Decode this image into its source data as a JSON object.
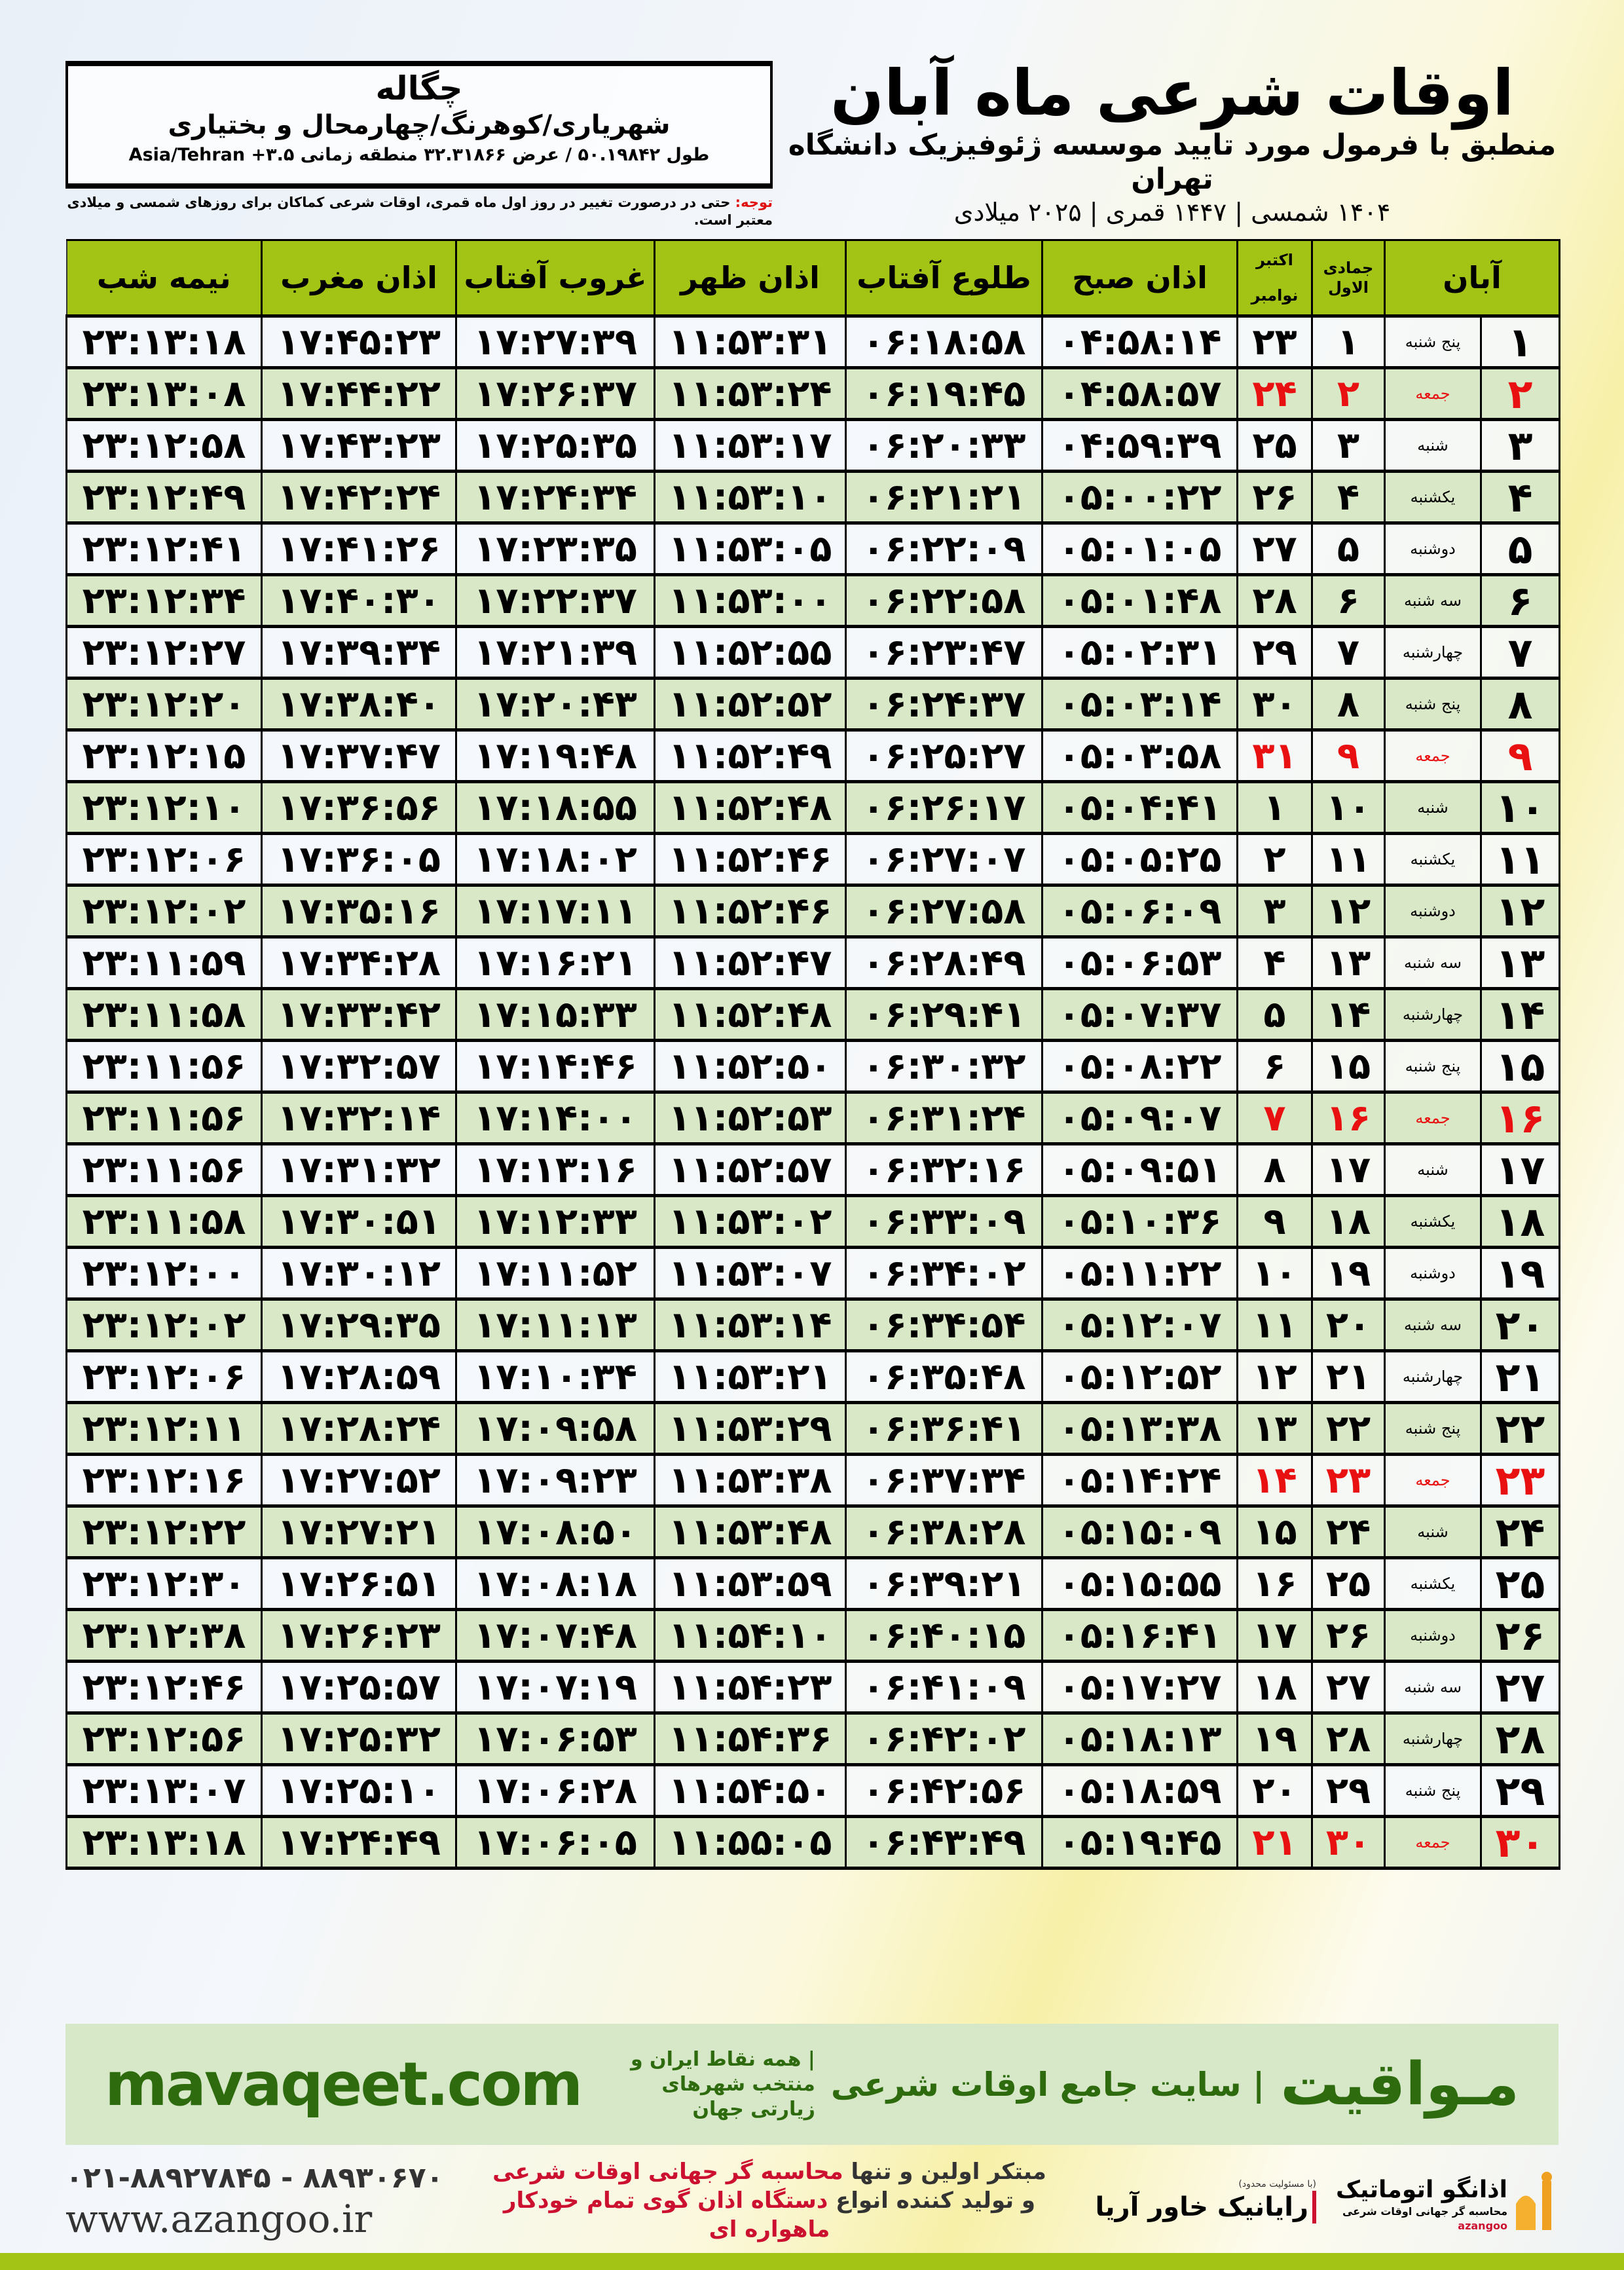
{
  "location": {
    "city": "چگاله",
    "region": "شهریاری/کوهرنگ/چهارمحال و بختیاری",
    "coords": "طول ۵۰.۱۹۸۴۲ / عرض ۳۲.۳۱۸۶۶ منطقه زمانی ۳.۵+ Asia/Tehran"
  },
  "header": {
    "title": "اوقات شرعی ماه آبان",
    "subtitle": "منطبق با فرمول مورد تایید موسسه ژئوفیزیک دانشگاه تهران",
    "dates": "۱۴۰۴ شمسی | ۱۴۴۷ قمری | ۲۰۲۵ میلادی"
  },
  "note": {
    "label": "توجه:",
    "text": " حتی در درصورت تغییر در روز اول ماه قمری، اوقات شرعی کماکان برای روزهای شمسی و میلادی معتبر است."
  },
  "table": {
    "columns": {
      "month": "آبان",
      "hijri": "جمادی الاول",
      "greg_1": "اکتبر",
      "greg_2": "نوامبر",
      "fajr": "اذان صبح",
      "sunrise": "طلوع آفتاب",
      "dhuhr": "اذان ظهر",
      "sunset": "غروب آفتاب",
      "maghrib": "اذان مغرب",
      "midnight": "نیمه شب"
    },
    "holiday_color": "#e81010",
    "header_color": "#a3c415",
    "alt_row_color": "#d9e8c7",
    "rows": [
      {
        "day": "۱",
        "weekday": "پنج شنبه",
        "hijri": "۱",
        "greg": "۲۳",
        "fajr": "۰۴:۵۸:۱۴",
        "sunrise": "۰۶:۱۸:۵۸",
        "dhuhr": "۱۱:۵۳:۳۱",
        "sunset": "۱۷:۲۷:۳۹",
        "maghrib": "۱۷:۴۵:۲۳",
        "midnight": "۲۳:۱۳:۱۸",
        "friday": false
      },
      {
        "day": "۲",
        "weekday": "جمعه",
        "hijri": "۲",
        "greg": "۲۴",
        "fajr": "۰۴:۵۸:۵۷",
        "sunrise": "۰۶:۱۹:۴۵",
        "dhuhr": "۱۱:۵۳:۲۴",
        "sunset": "۱۷:۲۶:۳۷",
        "maghrib": "۱۷:۴۴:۲۲",
        "midnight": "۲۳:۱۳:۰۸",
        "friday": true
      },
      {
        "day": "۳",
        "weekday": "شنبه",
        "hijri": "۳",
        "greg": "۲۵",
        "fajr": "۰۴:۵۹:۳۹",
        "sunrise": "۰۶:۲۰:۳۳",
        "dhuhr": "۱۱:۵۳:۱۷",
        "sunset": "۱۷:۲۵:۳۵",
        "maghrib": "۱۷:۴۳:۲۳",
        "midnight": "۲۳:۱۲:۵۸",
        "friday": false
      },
      {
        "day": "۴",
        "weekday": "یکشنبه",
        "hijri": "۴",
        "greg": "۲۶",
        "fajr": "۰۵:۰۰:۲۲",
        "sunrise": "۰۶:۲۱:۲۱",
        "dhuhr": "۱۱:۵۳:۱۰",
        "sunset": "۱۷:۲۴:۳۴",
        "maghrib": "۱۷:۴۲:۲۴",
        "midnight": "۲۳:۱۲:۴۹",
        "friday": false
      },
      {
        "day": "۵",
        "weekday": "دوشنبه",
        "hijri": "۵",
        "greg": "۲۷",
        "fajr": "۰۵:۰۱:۰۵",
        "sunrise": "۰۶:۲۲:۰۹",
        "dhuhr": "۱۱:۵۳:۰۵",
        "sunset": "۱۷:۲۳:۳۵",
        "maghrib": "۱۷:۴۱:۲۶",
        "midnight": "۲۳:۱۲:۴۱",
        "friday": false
      },
      {
        "day": "۶",
        "weekday": "سه شنبه",
        "hijri": "۶",
        "greg": "۲۸",
        "fajr": "۰۵:۰۱:۴۸",
        "sunrise": "۰۶:۲۲:۵۸",
        "dhuhr": "۱۱:۵۳:۰۰",
        "sunset": "۱۷:۲۲:۳۷",
        "maghrib": "۱۷:۴۰:۳۰",
        "midnight": "۲۳:۱۲:۳۴",
        "friday": false
      },
      {
        "day": "۷",
        "weekday": "چهارشنبه",
        "hijri": "۷",
        "greg": "۲۹",
        "fajr": "۰۵:۰۲:۳۱",
        "sunrise": "۰۶:۲۳:۴۷",
        "dhuhr": "۱۱:۵۲:۵۵",
        "sunset": "۱۷:۲۱:۳۹",
        "maghrib": "۱۷:۳۹:۳۴",
        "midnight": "۲۳:۱۲:۲۷",
        "friday": false
      },
      {
        "day": "۸",
        "weekday": "پنج شنبه",
        "hijri": "۸",
        "greg": "۳۰",
        "fajr": "۰۵:۰۳:۱۴",
        "sunrise": "۰۶:۲۴:۳۷",
        "dhuhr": "۱۱:۵۲:۵۲",
        "sunset": "۱۷:۲۰:۴۳",
        "maghrib": "۱۷:۳۸:۴۰",
        "midnight": "۲۳:۱۲:۲۰",
        "friday": false
      },
      {
        "day": "۹",
        "weekday": "جمعه",
        "hijri": "۹",
        "greg": "۳۱",
        "fajr": "۰۵:۰۳:۵۸",
        "sunrise": "۰۶:۲۵:۲۷",
        "dhuhr": "۱۱:۵۲:۴۹",
        "sunset": "۱۷:۱۹:۴۸",
        "maghrib": "۱۷:۳۷:۴۷",
        "midnight": "۲۳:۱۲:۱۵",
        "friday": true
      },
      {
        "day": "۱۰",
        "weekday": "شنبه",
        "hijri": "۱۰",
        "greg": "۱",
        "fajr": "۰۵:۰۴:۴۱",
        "sunrise": "۰۶:۲۶:۱۷",
        "dhuhr": "۱۱:۵۲:۴۸",
        "sunset": "۱۷:۱۸:۵۵",
        "maghrib": "۱۷:۳۶:۵۶",
        "midnight": "۲۳:۱۲:۱۰",
        "friday": false
      },
      {
        "day": "۱۱",
        "weekday": "یکشنبه",
        "hijri": "۱۱",
        "greg": "۲",
        "fajr": "۰۵:۰۵:۲۵",
        "sunrise": "۰۶:۲۷:۰۷",
        "dhuhr": "۱۱:۵۲:۴۶",
        "sunset": "۱۷:۱۸:۰۲",
        "maghrib": "۱۷:۳۶:۰۵",
        "midnight": "۲۳:۱۲:۰۶",
        "friday": false
      },
      {
        "day": "۱۲",
        "weekday": "دوشنبه",
        "hijri": "۱۲",
        "greg": "۳",
        "fajr": "۰۵:۰۶:۰۹",
        "sunrise": "۰۶:۲۷:۵۸",
        "dhuhr": "۱۱:۵۲:۴۶",
        "sunset": "۱۷:۱۷:۱۱",
        "maghrib": "۱۷:۳۵:۱۶",
        "midnight": "۲۳:۱۲:۰۲",
        "friday": false
      },
      {
        "day": "۱۳",
        "weekday": "سه شنبه",
        "hijri": "۱۳",
        "greg": "۴",
        "fajr": "۰۵:۰۶:۵۳",
        "sunrise": "۰۶:۲۸:۴۹",
        "dhuhr": "۱۱:۵۲:۴۷",
        "sunset": "۱۷:۱۶:۲۱",
        "maghrib": "۱۷:۳۴:۲۸",
        "midnight": "۲۳:۱۱:۵۹",
        "friday": false
      },
      {
        "day": "۱۴",
        "weekday": "چهارشنبه",
        "hijri": "۱۴",
        "greg": "۵",
        "fajr": "۰۵:۰۷:۳۷",
        "sunrise": "۰۶:۲۹:۴۱",
        "dhuhr": "۱۱:۵۲:۴۸",
        "sunset": "۱۷:۱۵:۳۳",
        "maghrib": "۱۷:۳۳:۴۲",
        "midnight": "۲۳:۱۱:۵۸",
        "friday": false
      },
      {
        "day": "۱۵",
        "weekday": "پنج شنبه",
        "hijri": "۱۵",
        "greg": "۶",
        "fajr": "۰۵:۰۸:۲۲",
        "sunrise": "۰۶:۳۰:۳۲",
        "dhuhr": "۱۱:۵۲:۵۰",
        "sunset": "۱۷:۱۴:۴۶",
        "maghrib": "۱۷:۳۲:۵۷",
        "midnight": "۲۳:۱۱:۵۶",
        "friday": false
      },
      {
        "day": "۱۶",
        "weekday": "جمعه",
        "hijri": "۱۶",
        "greg": "۷",
        "fajr": "۰۵:۰۹:۰۷",
        "sunrise": "۰۶:۳۱:۲۴",
        "dhuhr": "۱۱:۵۲:۵۳",
        "sunset": "۱۷:۱۴:۰۰",
        "maghrib": "۱۷:۳۲:۱۴",
        "midnight": "۲۳:۱۱:۵۶",
        "friday": true
      },
      {
        "day": "۱۷",
        "weekday": "شنبه",
        "hijri": "۱۷",
        "greg": "۸",
        "fajr": "۰۵:۰۹:۵۱",
        "sunrise": "۰۶:۳۲:۱۶",
        "dhuhr": "۱۱:۵۲:۵۷",
        "sunset": "۱۷:۱۳:۱۶",
        "maghrib": "۱۷:۳۱:۳۲",
        "midnight": "۲۳:۱۱:۵۶",
        "friday": false
      },
      {
        "day": "۱۸",
        "weekday": "یکشنبه",
        "hijri": "۱۸",
        "greg": "۹",
        "fajr": "۰۵:۱۰:۳۶",
        "sunrise": "۰۶:۳۳:۰۹",
        "dhuhr": "۱۱:۵۳:۰۲",
        "sunset": "۱۷:۱۲:۳۳",
        "maghrib": "۱۷:۳۰:۵۱",
        "midnight": "۲۳:۱۱:۵۸",
        "friday": false
      },
      {
        "day": "۱۹",
        "weekday": "دوشنبه",
        "hijri": "۱۹",
        "greg": "۱۰",
        "fajr": "۰۵:۱۱:۲۲",
        "sunrise": "۰۶:۳۴:۰۲",
        "dhuhr": "۱۱:۵۳:۰۷",
        "sunset": "۱۷:۱۱:۵۲",
        "maghrib": "۱۷:۳۰:۱۲",
        "midnight": "۲۳:۱۲:۰۰",
        "friday": false
      },
      {
        "day": "۲۰",
        "weekday": "سه شنبه",
        "hijri": "۲۰",
        "greg": "۱۱",
        "fajr": "۰۵:۱۲:۰۷",
        "sunrise": "۰۶:۳۴:۵۴",
        "dhuhr": "۱۱:۵۳:۱۴",
        "sunset": "۱۷:۱۱:۱۳",
        "maghrib": "۱۷:۲۹:۳۵",
        "midnight": "۲۳:۱۲:۰۲",
        "friday": false
      },
      {
        "day": "۲۱",
        "weekday": "چهارشنبه",
        "hijri": "۲۱",
        "greg": "۱۲",
        "fajr": "۰۵:۱۲:۵۲",
        "sunrise": "۰۶:۳۵:۴۸",
        "dhuhr": "۱۱:۵۳:۲۱",
        "sunset": "۱۷:۱۰:۳۴",
        "maghrib": "۱۷:۲۸:۵۹",
        "midnight": "۲۳:۱۲:۰۶",
        "friday": false
      },
      {
        "day": "۲۲",
        "weekday": "پنج شنبه",
        "hijri": "۲۲",
        "greg": "۱۳",
        "fajr": "۰۵:۱۳:۳۸",
        "sunrise": "۰۶:۳۶:۴۱",
        "dhuhr": "۱۱:۵۳:۲۹",
        "sunset": "۱۷:۰۹:۵۸",
        "maghrib": "۱۷:۲۸:۲۴",
        "midnight": "۲۳:۱۲:۱۱",
        "friday": false
      },
      {
        "day": "۲۳",
        "weekday": "جمعه",
        "hijri": "۲۳",
        "greg": "۱۴",
        "fajr": "۰۵:۱۴:۲۴",
        "sunrise": "۰۶:۳۷:۳۴",
        "dhuhr": "۱۱:۵۳:۳۸",
        "sunset": "۱۷:۰۹:۲۳",
        "maghrib": "۱۷:۲۷:۵۲",
        "midnight": "۲۳:۱۲:۱۶",
        "friday": true
      },
      {
        "day": "۲۴",
        "weekday": "شنبه",
        "hijri": "۲۴",
        "greg": "۱۵",
        "fajr": "۰۵:۱۵:۰۹",
        "sunrise": "۰۶:۳۸:۲۸",
        "dhuhr": "۱۱:۵۳:۴۸",
        "sunset": "۱۷:۰۸:۵۰",
        "maghrib": "۱۷:۲۷:۲۱",
        "midnight": "۲۳:۱۲:۲۲",
        "friday": false
      },
      {
        "day": "۲۵",
        "weekday": "یکشنبه",
        "hijri": "۲۵",
        "greg": "۱۶",
        "fajr": "۰۵:۱۵:۵۵",
        "sunrise": "۰۶:۳۹:۲۱",
        "dhuhr": "۱۱:۵۳:۵۹",
        "sunset": "۱۷:۰۸:۱۸",
        "maghrib": "۱۷:۲۶:۵۱",
        "midnight": "۲۳:۱۲:۳۰",
        "friday": false
      },
      {
        "day": "۲۶",
        "weekday": "دوشنبه",
        "hijri": "۲۶",
        "greg": "۱۷",
        "fajr": "۰۵:۱۶:۴۱",
        "sunrise": "۰۶:۴۰:۱۵",
        "dhuhr": "۱۱:۵۴:۱۰",
        "sunset": "۱۷:۰۷:۴۸",
        "maghrib": "۱۷:۲۶:۲۳",
        "midnight": "۲۳:۱۲:۳۸",
        "friday": false
      },
      {
        "day": "۲۷",
        "weekday": "سه شنبه",
        "hijri": "۲۷",
        "greg": "۱۸",
        "fajr": "۰۵:۱۷:۲۷",
        "sunrise": "۰۶:۴۱:۰۹",
        "dhuhr": "۱۱:۵۴:۲۳",
        "sunset": "۱۷:۰۷:۱۹",
        "maghrib": "۱۷:۲۵:۵۷",
        "midnight": "۲۳:۱۲:۴۶",
        "friday": false
      },
      {
        "day": "۲۸",
        "weekday": "چهارشنبه",
        "hijri": "۲۸",
        "greg": "۱۹",
        "fajr": "۰۵:۱۸:۱۳",
        "sunrise": "۰۶:۴۲:۰۲",
        "dhuhr": "۱۱:۵۴:۳۶",
        "sunset": "۱۷:۰۶:۵۳",
        "maghrib": "۱۷:۲۵:۳۲",
        "midnight": "۲۳:۱۲:۵۶",
        "friday": false
      },
      {
        "day": "۲۹",
        "weekday": "پنج شنبه",
        "hijri": "۲۹",
        "greg": "۲۰",
        "fajr": "۰۵:۱۸:۵۹",
        "sunrise": "۰۶:۴۲:۵۶",
        "dhuhr": "۱۱:۵۴:۵۰",
        "sunset": "۱۷:۰۶:۲۸",
        "maghrib": "۱۷:۲۵:۱۰",
        "midnight": "۲۳:۱۳:۰۷",
        "friday": false
      },
      {
        "day": "۳۰",
        "weekday": "جمعه",
        "hijri": "۳۰",
        "greg": "۲۱",
        "fajr": "۰۵:۱۹:۴۵",
        "sunrise": "۰۶:۴۳:۴۹",
        "dhuhr": "۱۱:۵۵:۰۵",
        "sunset": "۱۷:۰۶:۰۵",
        "maghrib": "۱۷:۲۴:۴۹",
        "midnight": "۲۳:۱۳:۱۸",
        "friday": true
      }
    ]
  },
  "footer": {
    "site_name": "مـواقیت",
    "site_tagline": "| سایت جامع اوقات شرعی",
    "site_desc": "| همه نقاط ایران و منتخب شهرهای زیارتی جهان",
    "site_url": "mavaqeet.com",
    "phone": "۰۲۱-۸۸۹۲۷۸۴۵ - ۸۸۹۳۰۶۷۰",
    "website": "www.azangoo.ir",
    "promo_line1_a": "مبتکر اولین و تنها ",
    "promo_line1_b": "محاسبه گر جهانی اوقات شرعی",
    "promo_line2_a": "و تولید کننده انواع ",
    "promo_line2_b": "دستگاه اذان گوی تمام خودکار ماهواره ای",
    "logo_rayanik": "رایانیک خاور آریا",
    "logo_rayanik_note": "(با مسئولیت محدود)",
    "logo_azangoo": "اذانگو اتوماتیک",
    "logo_azangoo_sub": "محاسبه گر جهانی اوقات شرعی",
    "logo_azangoo_en": "azangoo",
    "brand_color": "#2e6a0e",
    "accent_red": "#cc1030"
  }
}
